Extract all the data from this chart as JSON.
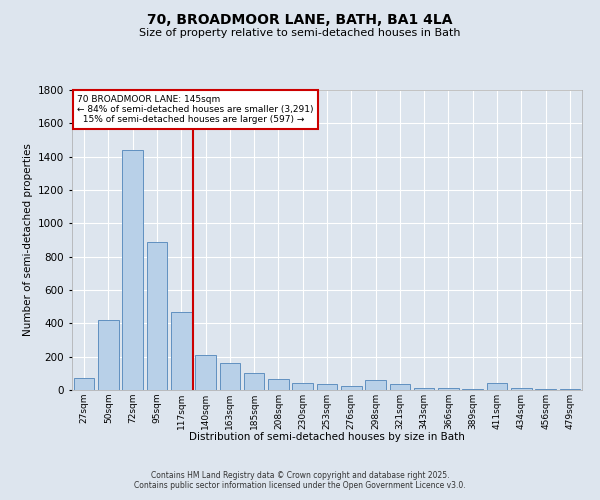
{
  "title": "70, BROADMOOR LANE, BATH, BA1 4LA",
  "subtitle": "Size of property relative to semi-detached houses in Bath",
  "xlabel": "Distribution of semi-detached houses by size in Bath",
  "ylabel": "Number of semi-detached properties",
  "bin_labels": [
    "27sqm",
    "50sqm",
    "72sqm",
    "95sqm",
    "117sqm",
    "140sqm",
    "163sqm",
    "185sqm",
    "208sqm",
    "230sqm",
    "253sqm",
    "276sqm",
    "298sqm",
    "321sqm",
    "343sqm",
    "366sqm",
    "389sqm",
    "411sqm",
    "434sqm",
    "456sqm",
    "479sqm"
  ],
  "bar_values": [
    75,
    420,
    1440,
    890,
    470,
    210,
    160,
    100,
    65,
    45,
    35,
    25,
    60,
    35,
    15,
    10,
    5,
    40,
    10,
    5,
    5
  ],
  "bar_color": "#b8d0e8",
  "bar_edge_color": "#6090c0",
  "property_line_bin": 5,
  "property_size": "145sqm",
  "pct_smaller": 84,
  "n_smaller": 3291,
  "pct_larger": 15,
  "n_larger": 597,
  "line_color": "#cc0000",
  "annotation_box_color": "#cc0000",
  "background_color": "#dde5ee",
  "grid_color": "#ffffff",
  "footer_line1": "Contains HM Land Registry data © Crown copyright and database right 2025.",
  "footer_line2": "Contains public sector information licensed under the Open Government Licence v3.0.",
  "ylim": [
    0,
    1800
  ],
  "yticks": [
    0,
    200,
    400,
    600,
    800,
    1000,
    1200,
    1400,
    1600,
    1800
  ]
}
